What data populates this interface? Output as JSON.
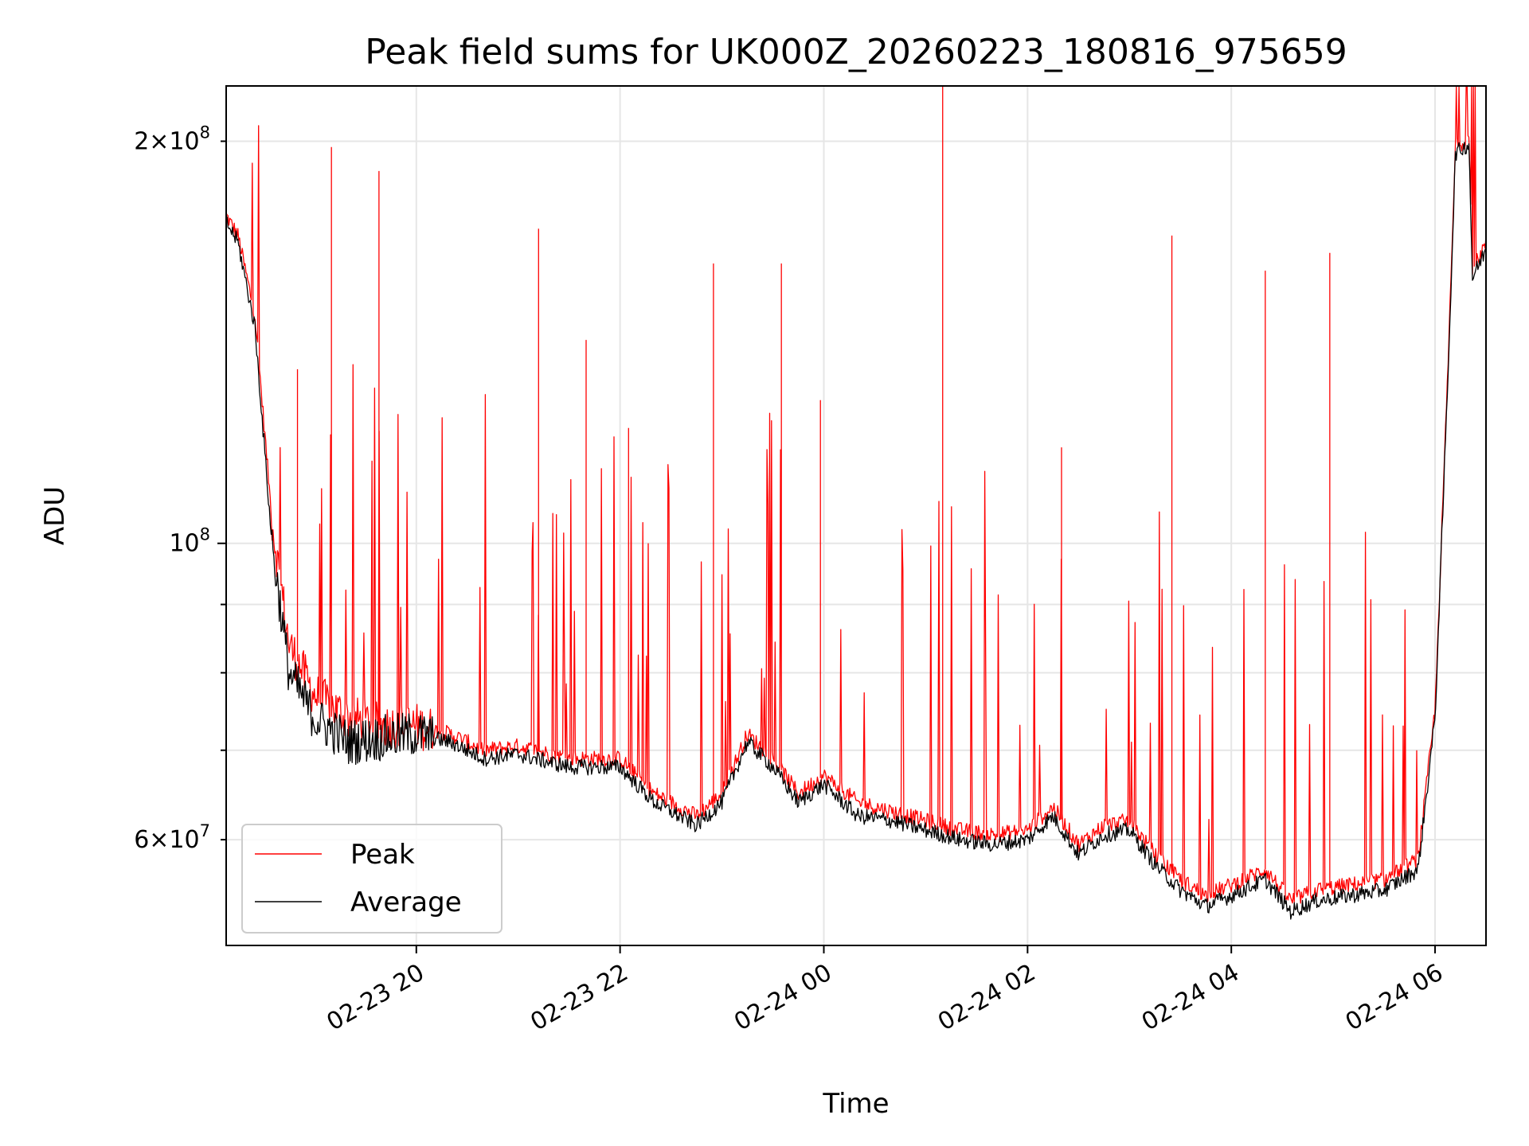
{
  "chart_data": {
    "type": "line",
    "title": "Peak field sums for UK000Z_20260223_180816_975659",
    "xlabel": "Time",
    "ylabel": "ADU",
    "x_type": "datetime",
    "xlim": [
      "2026-02-23 18:08",
      "2026-02-24 06:30"
    ],
    "ylim": [
      50000000,
      220000000
    ],
    "y_scale": "log",
    "grid": true,
    "legend_position": "lower-left",
    "x_ticks": [
      {
        "value": "2026-02-23 20:00",
        "label": "02-23 20"
      },
      {
        "value": "2026-02-23 22:00",
        "label": "02-23 22"
      },
      {
        "value": "2026-02-24 00:00",
        "label": "02-24 00"
      },
      {
        "value": "2026-02-24 02:00",
        "label": "02-24 02"
      },
      {
        "value": "2026-02-24 04:00",
        "label": "02-24 04"
      },
      {
        "value": "2026-02-24 06:00",
        "label": "02-24 06"
      }
    ],
    "y_ticks_major": [
      {
        "value": 100000000,
        "base": "10",
        "exp": "8"
      }
    ],
    "y_ticks_labeled_minor": [
      {
        "value": 200000000,
        "mant": "2",
        "base": "10",
        "exp": "8"
      },
      {
        "value": 60000000,
        "mant": "6",
        "base": "10",
        "exp": "7"
      }
    ],
    "y_ticks_minor": [
      70000000,
      80000000,
      90000000
    ],
    "series": [
      {
        "name": "Peak",
        "color": "#ff0000",
        "x": [
          "2026-02-23 18:08",
          "2026-02-23 18:15",
          "2026-02-23 18:25",
          "2026-02-23 18:35",
          "2026-02-23 18:45",
          "2026-02-23 19:00",
          "2026-02-23 19:20",
          "2026-02-23 19:40",
          "2026-02-23 20:00",
          "2026-02-23 20:20",
          "2026-02-23 20:40",
          "2026-02-23 21:00",
          "2026-02-23 21:30",
          "2026-02-23 22:00",
          "2026-02-23 22:20",
          "2026-02-23 22:45",
          "2026-02-23 23:00",
          "2026-02-23 23:15",
          "2026-02-23 23:30",
          "2026-02-23 23:45",
          "2026-02-24 00:00",
          "2026-02-24 00:20",
          "2026-02-24 00:40",
          "2026-02-24 01:00",
          "2026-02-24 01:20",
          "2026-02-24 01:40",
          "2026-02-24 02:00",
          "2026-02-24 02:15",
          "2026-02-24 02:30",
          "2026-02-24 02:45",
          "2026-02-24 03:00",
          "2026-02-24 03:15",
          "2026-02-24 03:30",
          "2026-02-24 03:45",
          "2026-02-24 04:00",
          "2026-02-24 04:20",
          "2026-02-24 04:35",
          "2026-02-24 04:50",
          "2026-02-24 05:10",
          "2026-02-24 05:30",
          "2026-02-24 05:50",
          "2026-02-24 06:00",
          "2026-02-24 06:08",
          "2026-02-24 06:12",
          "2026-02-24 06:20",
          "2026-02-24 06:22",
          "2026-02-24 06:30"
        ],
        "y": [
          176000000,
          170000000,
          148000000,
          104000000,
          84000000,
          77000000,
          74000000,
          73000000,
          73000000,
          72000000,
          70000000,
          70500000,
          69000000,
          69000000,
          65000000,
          62500000,
          65000000,
          72000000,
          69000000,
          65000000,
          67000000,
          64000000,
          63000000,
          62000000,
          61000000,
          60500000,
          61000000,
          63500000,
          59500000,
          61500000,
          62000000,
          58500000,
          56000000,
          54500000,
          55500000,
          57000000,
          54000000,
          55000000,
          55500000,
          56000000,
          58000000,
          75000000,
          140000000,
          198000000,
          201000000,
          160000000,
          168000000
        ],
        "spikes": [
          {
            "x": "2026-02-23 18:50",
            "y": 135000000
          },
          {
            "x": "2026-02-23 19:10",
            "y": 198000000
          },
          {
            "x": "2026-02-23 19:38",
            "y": 190000000
          },
          {
            "x": "2026-02-23 21:12",
            "y": 172000000
          },
          {
            "x": "2026-02-23 21:40",
            "y": 142000000
          },
          {
            "x": "2026-02-23 22:05",
            "y": 122000000
          },
          {
            "x": "2026-02-23 22:55",
            "y": 162000000
          },
          {
            "x": "2026-02-23 23:35",
            "y": 162000000
          },
          {
            "x": "2026-02-23 23:58",
            "y": 128000000
          },
          {
            "x": "2026-02-24 01:10",
            "y": 225000000
          },
          {
            "x": "2026-02-24 02:20",
            "y": 118000000
          },
          {
            "x": "2026-02-24 03:25",
            "y": 170000000
          },
          {
            "x": "2026-02-24 04:20",
            "y": 160000000
          },
          {
            "x": "2026-02-24 04:58",
            "y": 165000000
          }
        ]
      },
      {
        "name": "Average",
        "color": "#000000",
        "x": [
          "2026-02-23 18:08",
          "2026-02-23 18:15",
          "2026-02-23 18:25",
          "2026-02-23 18:35",
          "2026-02-23 18:45",
          "2026-02-23 19:00",
          "2026-02-23 19:20",
          "2026-02-23 19:40",
          "2026-02-23 20:00",
          "2026-02-23 20:20",
          "2026-02-23 20:40",
          "2026-02-23 21:00",
          "2026-02-23 21:30",
          "2026-02-23 22:00",
          "2026-02-23 22:20",
          "2026-02-23 22:45",
          "2026-02-23 23:00",
          "2026-02-23 23:15",
          "2026-02-23 23:30",
          "2026-02-23 23:45",
          "2026-02-24 00:00",
          "2026-02-24 00:20",
          "2026-02-24 00:40",
          "2026-02-24 01:00",
          "2026-02-24 01:20",
          "2026-02-24 01:40",
          "2026-02-24 02:00",
          "2026-02-24 02:15",
          "2026-02-24 02:30",
          "2026-02-24 02:45",
          "2026-02-24 03:00",
          "2026-02-24 03:15",
          "2026-02-24 03:30",
          "2026-02-24 03:45",
          "2026-02-24 04:00",
          "2026-02-24 04:20",
          "2026-02-24 04:35",
          "2026-02-24 04:50",
          "2026-02-24 05:10",
          "2026-02-24 05:30",
          "2026-02-24 05:50",
          "2026-02-24 06:00",
          "2026-02-24 06:08",
          "2026-02-24 06:12",
          "2026-02-24 06:20",
          "2026-02-24 06:22",
          "2026-02-24 06:30"
        ],
        "y": [
          174000000,
          168000000,
          145000000,
          100000000,
          80000000,
          74000000,
          71000000,
          71500000,
          72000000,
          71000000,
          69000000,
          69500000,
          68000000,
          68000000,
          64000000,
          61500000,
          64000000,
          71000000,
          68000000,
          64000000,
          66000000,
          62500000,
          62000000,
          61000000,
          60000000,
          59500000,
          60000000,
          62500000,
          58500000,
          60500000,
          61000000,
          57500000,
          55000000,
          53500000,
          54500000,
          56000000,
          53000000,
          54000000,
          54500000,
          55000000,
          57000000,
          74000000,
          138000000,
          196000000,
          199000000,
          158000000,
          166000000
        ]
      }
    ]
  }
}
